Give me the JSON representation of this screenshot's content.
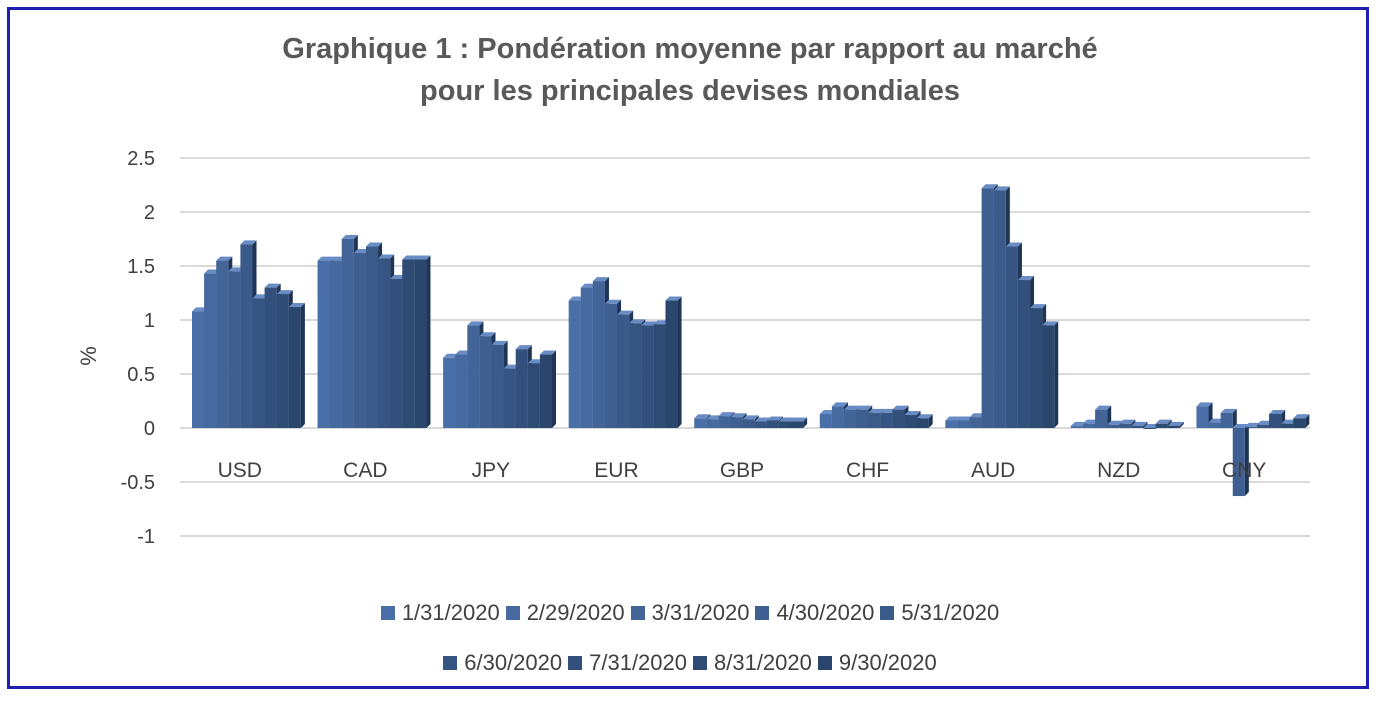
{
  "chart_data": {
    "type": "bar",
    "title": "Graphique 1 : Pondération moyenne par rapport au marché",
    "subtitle": "pour les principales devises mondiales",
    "xlabel": "",
    "ylabel": "%",
    "ylim": [
      -1,
      2.5
    ],
    "yticks": [
      "2.5",
      "2",
      "1.5",
      "1",
      "0.5",
      "0",
      "-0.5",
      "-1"
    ],
    "ytick_values": [
      2.5,
      2,
      1.5,
      1,
      0.5,
      0,
      -0.5,
      -1
    ],
    "grid": true,
    "legend_position": "bottom",
    "categories": [
      "USD",
      "CAD",
      "JPY",
      "EUR",
      "GBP",
      "CHF",
      "AUD",
      "NZD",
      "CNY"
    ],
    "series": [
      {
        "name": "1/31/2020",
        "color": "#4a6fa8",
        "values": [
          1.08,
          1.55,
          0.65,
          1.18,
          0.09,
          0.13,
          0.07,
          0.02,
          0.2
        ]
      },
      {
        "name": "2/29/2020",
        "color": "#46699f",
        "values": [
          1.43,
          1.55,
          0.68,
          1.3,
          0.08,
          0.2,
          0.07,
          0.04,
          0.05
        ]
      },
      {
        "name": "3/31/2020",
        "color": "#426497",
        "values": [
          1.55,
          1.75,
          0.95,
          1.36,
          0.11,
          0.17,
          0.1,
          0.17,
          0.14
        ]
      },
      {
        "name": "4/30/2020",
        "color": "#3e5f90",
        "values": [
          1.45,
          1.62,
          0.85,
          1.15,
          0.1,
          0.17,
          2.22,
          0.03,
          -0.63
        ]
      },
      {
        "name": "5/31/2020",
        "color": "#3a5a89",
        "values": [
          1.7,
          1.68,
          0.77,
          1.05,
          0.08,
          0.14,
          2.2,
          0.04,
          0.01
        ]
      },
      {
        "name": "6/30/2020",
        "color": "#365582",
        "values": [
          1.2,
          1.57,
          0.55,
          0.97,
          0.06,
          0.14,
          1.68,
          0.02,
          0.03
        ]
      },
      {
        "name": "7/31/2020",
        "color": "#32507b",
        "values": [
          1.3,
          1.38,
          0.73,
          0.95,
          0.07,
          0.17,
          1.37,
          0.0,
          0.13
        ]
      },
      {
        "name": "8/31/2020",
        "color": "#2e4b74",
        "values": [
          1.24,
          1.56,
          0.6,
          0.96,
          0.06,
          0.12,
          1.11,
          0.04,
          0.04
        ]
      },
      {
        "name": "9/30/2020",
        "color": "#2a466d",
        "values": [
          1.12,
          1.56,
          0.68,
          1.18,
          0.06,
          0.09,
          0.95,
          0.02,
          0.09
        ]
      }
    ]
  }
}
